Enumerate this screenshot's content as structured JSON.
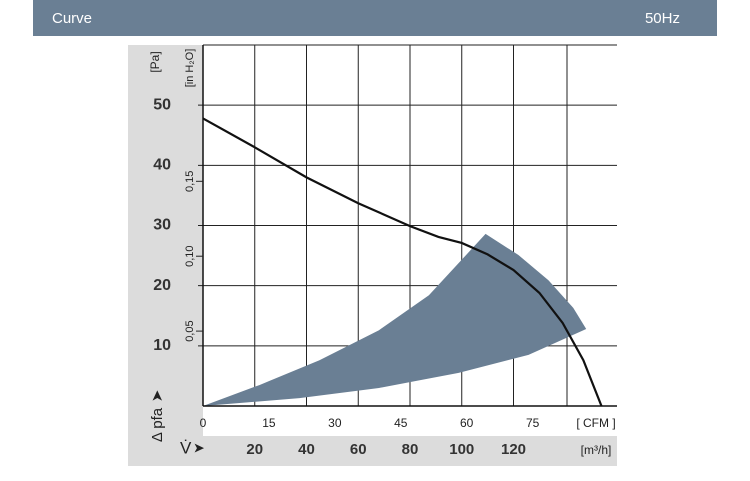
{
  "header": {
    "title": "Curve",
    "frequency": "50Hz"
  },
  "chart_data": {
    "type": "line",
    "ylabel": "[Pa]",
    "y2label": "[in H₂O]",
    "yaxis_title": "Δ pfa",
    "xaxis_title": "V̇",
    "xlabel": "[m³/h]",
    "x2label": "[ CFM ]",
    "xlim": [
      0,
      160
    ],
    "xticks": [
      20,
      40,
      60,
      80,
      100,
      120
    ],
    "x2lim": [
      0,
      94.2
    ],
    "x2ticks": [
      0,
      15,
      30,
      45,
      60,
      75
    ],
    "ylim": [
      0,
      60
    ],
    "yticks": [
      10,
      20,
      30,
      40,
      50
    ],
    "y2lim": [
      0,
      0.241
    ],
    "y2ticks": [
      {
        "value": 0.05,
        "label": "0,05"
      },
      {
        "value": 0.1,
        "label": "0,10"
      },
      {
        "value": 0.15,
        "label": "0,15"
      }
    ],
    "grid": true,
    "series": [
      {
        "color": "#111111",
        "x": [
          0,
          20,
          40,
          60,
          80,
          91,
          100,
          110,
          120,
          130,
          139,
          147,
          154
        ],
        "values": [
          47.8,
          43.0,
          38.0,
          33.7,
          29.9,
          28.1,
          27.1,
          25.2,
          22.6,
          18.8,
          13.8,
          7.6,
          0
        ]
      }
    ],
    "area": {
      "color": "#6a7f94",
      "x": [
        0,
        21.9,
        45,
        68,
        87.3,
        109.2,
        121.9,
        133.5,
        143.1,
        148.1,
        125.8,
        98.8,
        68,
        37.3
      ],
      "values": [
        0,
        3.5,
        7.6,
        12.6,
        18.4,
        28.6,
        25.1,
        20.9,
        16.3,
        12.8,
        8.5,
        5.5,
        3.0,
        1.3
      ]
    }
  }
}
